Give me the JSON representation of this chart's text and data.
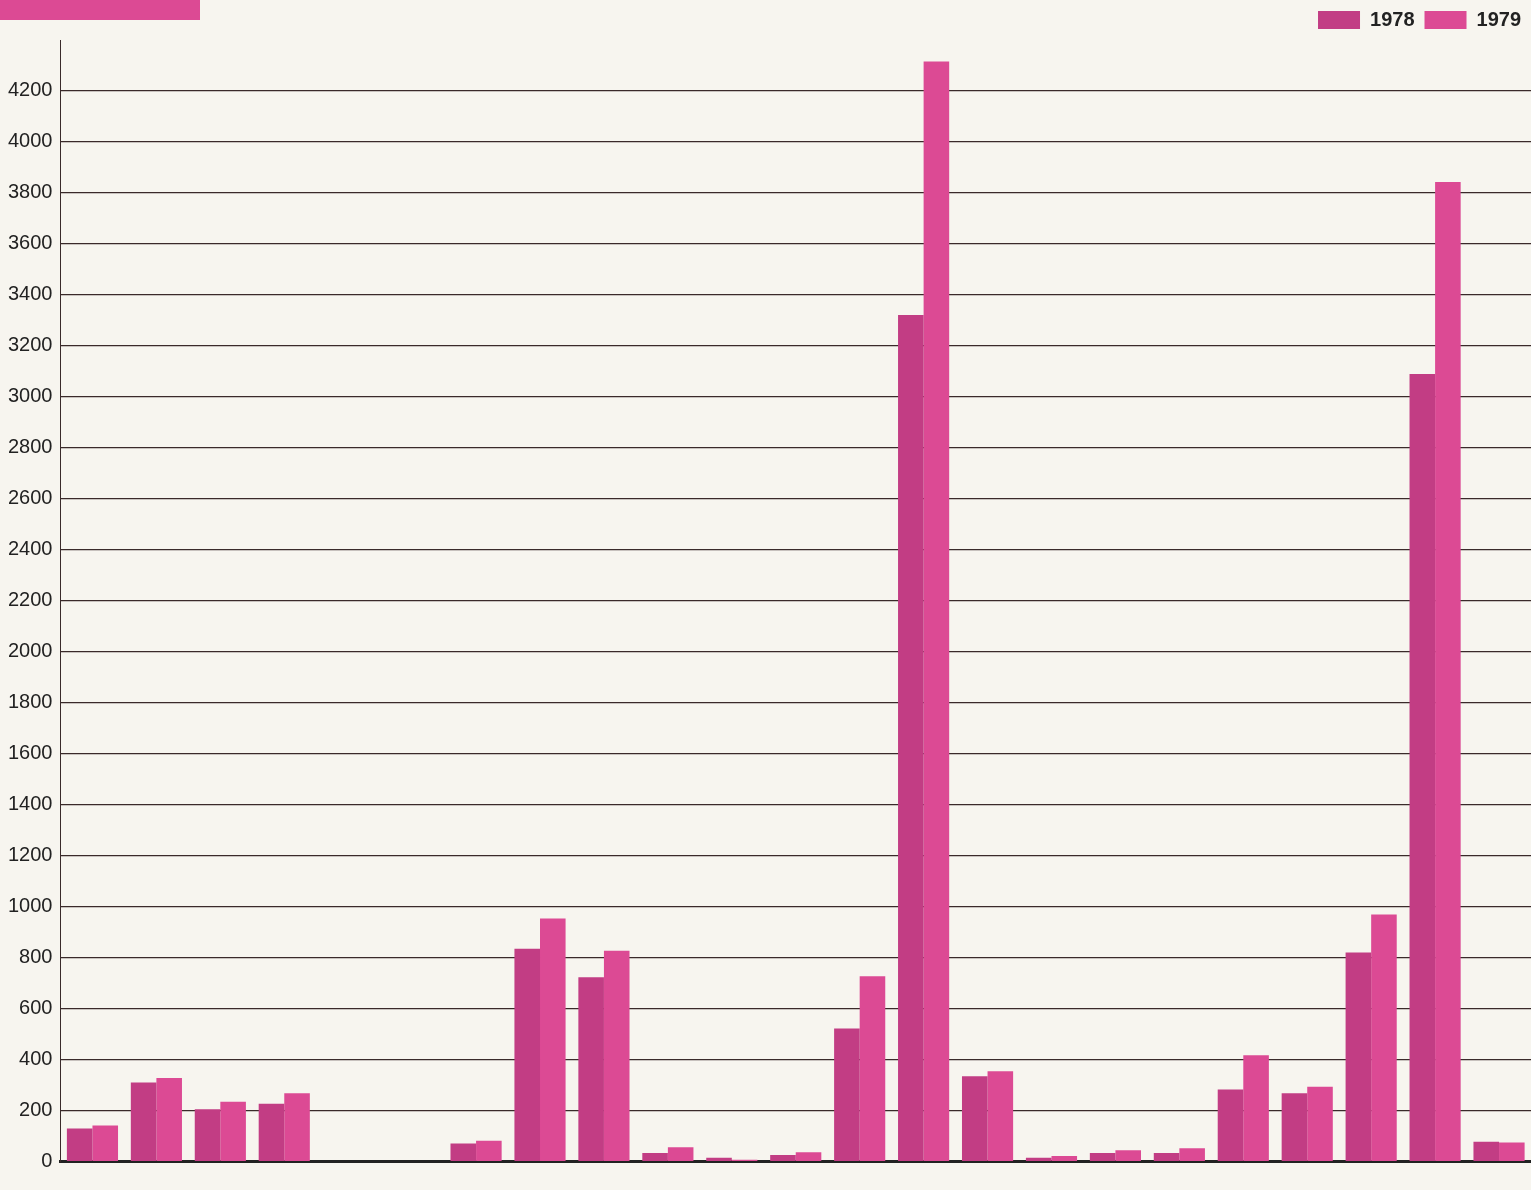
{
  "chart_data": {
    "type": "bar",
    "categories": [
      null,
      null,
      null,
      null,
      null,
      null,
      null,
      null,
      null,
      null,
      null,
      null,
      null,
      null,
      null,
      null,
      null,
      null,
      null,
      null,
      null,
      null,
      null
    ],
    "series": [
      {
        "name": "1978",
        "color": "#c23d84",
        "values": [
          130,
          310,
          205,
          227,
          null,
          null,
          71,
          835,
          723,
          34,
          15,
          26,
          522,
          3321,
          335,
          15,
          34,
          34,
          283,
          268,
          820,
          3090,
          78
        ]
      },
      {
        "name": "1979",
        "color": "#dc4a94",
        "values": [
          142,
          328,
          235,
          268,
          null,
          null,
          82,
          954,
          827,
          56,
          7,
          37,
          727,
          4316,
          354,
          22,
          45,
          52,
          417,
          294,
          969,
          3843,
          75
        ]
      }
    ],
    "ylim": [
      0,
      4400
    ],
    "yticks": [
      0,
      200,
      400,
      600,
      800,
      1000,
      1200,
      1400,
      1600,
      1800,
      2000,
      2200,
      2400,
      2600,
      2800,
      3000,
      3200,
      3400,
      3600,
      3800,
      4000,
      4200
    ],
    "grid": "y",
    "legend": "top right"
  }
}
